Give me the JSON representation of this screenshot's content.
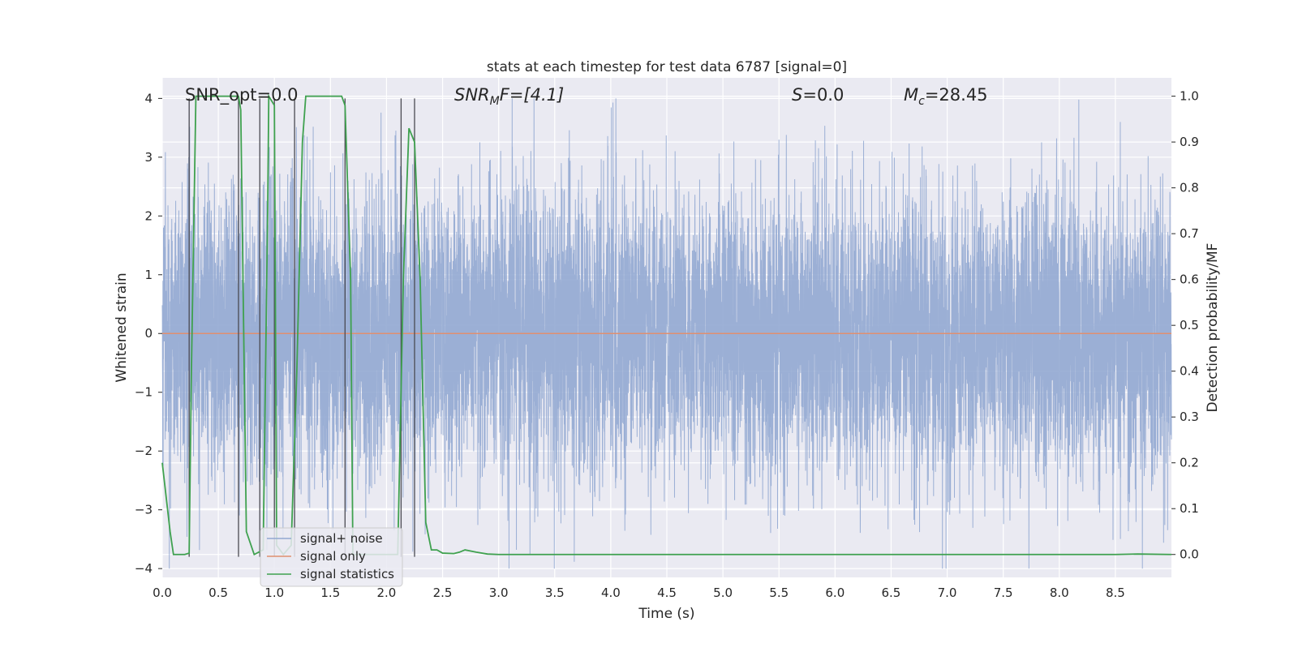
{
  "chart_data": {
    "type": "line",
    "title": "stats at each timestep for test data 6787 [signal=0]",
    "xlabel": "Time (s)",
    "ylabel": "Whitened strain",
    "y2label": "Detection probability/MF",
    "xlim": [
      0,
      9.0
    ],
    "ylim": [
      -4.15,
      4.35
    ],
    "y2lim": [
      -0.05,
      1.04
    ],
    "xticks": [
      0.0,
      0.5,
      1.0,
      1.5,
      2.0,
      2.5,
      3.0,
      3.5,
      4.0,
      4.5,
      5.0,
      5.5,
      6.0,
      6.5,
      7.0,
      7.5,
      8.0,
      8.5
    ],
    "xtick_labels": [
      "0.0",
      "0.5",
      "1.0",
      "1.5",
      "2.0",
      "2.5",
      "3.0",
      "3.5",
      "4.0",
      "4.5",
      "5.0",
      "5.5",
      "6.0",
      "6.5",
      "7.0",
      "7.5",
      "8.0",
      "8.5"
    ],
    "yticks": [
      4,
      3,
      2,
      1,
      0,
      -1,
      -2,
      -3,
      -4
    ],
    "ytick_labels": [
      "4",
      "3",
      "2",
      "1",
      "0",
      "−1",
      "−2",
      "−3",
      "−4"
    ],
    "y2ticks": [
      1.0,
      0.9,
      0.8,
      0.7,
      0.6,
      0.5,
      0.4,
      0.3,
      0.2,
      0.1,
      0.0
    ],
    "y2tick_labels": [
      "1.0",
      "0.9",
      "0.8",
      "0.7",
      "0.6",
      "0.5",
      "0.4",
      "0.3",
      "0.2",
      "0.1",
      "0.0"
    ],
    "grid": true,
    "legend_position": "lower-left",
    "annotations": {
      "snr_opt": "SNR_opt=0.0",
      "snr_mf_main": "SNR",
      "snr_mf_sub": "M",
      "snr_mf_rest": "F=[4.1]",
      "s_main": "S",
      "s_rest": "=0.0",
      "mc_main": "M",
      "mc_sub": "c",
      "mc_rest": "=28.45"
    },
    "series": [
      {
        "name": "signal+ noise",
        "color": "#92a8d1",
        "axis": "left",
        "noise_samples": 9000,
        "amplitude_std": 1.2,
        "y_min": -4.0,
        "y_max": 4.0
      },
      {
        "name": "signal only",
        "color": "#e08f6f",
        "axis": "left",
        "x": [
          0.0,
          9.0
        ],
        "y": [
          0.0,
          0.0
        ]
      },
      {
        "name": "signal statistics",
        "color": "#3fa14f",
        "axis": "right",
        "x": [
          0.0,
          0.07,
          0.1,
          0.2,
          0.24,
          0.26,
          0.3,
          0.32,
          0.4,
          0.5,
          0.6,
          0.68,
          0.7,
          0.75,
          0.82,
          0.9,
          0.94,
          0.95,
          1.0,
          1.02,
          1.08,
          1.15,
          1.2,
          1.25,
          1.28,
          1.35,
          1.5,
          1.6,
          1.63,
          1.68,
          1.7,
          1.8,
          2.0,
          2.1,
          2.15,
          2.2,
          2.25,
          2.3,
          2.35,
          2.4,
          2.45,
          2.5,
          2.6,
          2.65,
          2.7,
          2.8,
          2.9,
          3.0,
          3.5,
          4.0,
          5.0,
          6.0,
          7.0,
          8.0,
          8.5,
          8.7,
          9.0
        ],
        "y": [
          0.2,
          0.05,
          0.0,
          0.0,
          0.003,
          0.4,
          1.0,
          1.0,
          1.0,
          1.0,
          1.0,
          1.0,
          0.97,
          0.05,
          0.0,
          0.01,
          0.75,
          1.0,
          0.98,
          0.02,
          0.0,
          0.02,
          0.4,
          0.9,
          1.0,
          1.0,
          1.0,
          1.0,
          0.98,
          0.6,
          0.0,
          0.0,
          0.0,
          0.0,
          0.6,
          0.93,
          0.9,
          0.6,
          0.07,
          0.01,
          0.01,
          0.003,
          0.002,
          0.005,
          0.01,
          0.005,
          0.001,
          0.0,
          0.0,
          0.0,
          0.0,
          0.0,
          0.0,
          0.0,
          0.0,
          0.001,
          0.0
        ]
      }
    ],
    "vertical_markers": {
      "color": "#4a4a52",
      "x": [
        0.24,
        0.68,
        0.87,
        1.0,
        1.18,
        1.63,
        2.13,
        2.25
      ],
      "y_top": 4.0,
      "y_bottom": -3.8
    }
  }
}
